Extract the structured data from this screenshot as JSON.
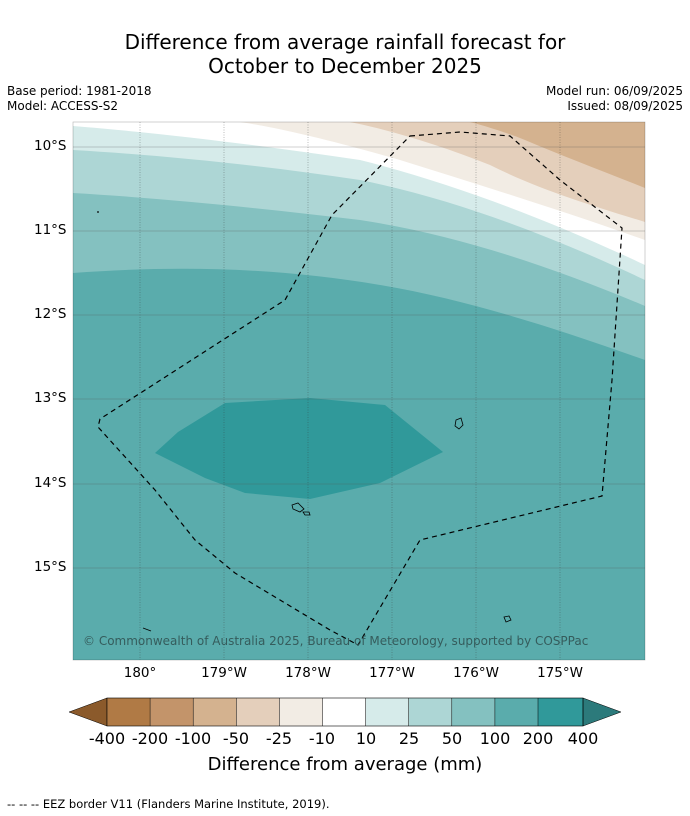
{
  "title_line1": "Difference from average rainfall forecast for",
  "title_line2": "October to December 2025",
  "meta_left": {
    "base_period": "Base period: 1981-2018",
    "model": "Model: ACCESS-S2"
  },
  "meta_right": {
    "model_run": "Model run: 06/09/2025",
    "issued": "Issued: 08/09/2025"
  },
  "map": {
    "lat_labels": [
      "10°S",
      "11°S",
      "12°S",
      "13°S",
      "14°S",
      "15°S"
    ],
    "lon_labels": [
      "180°",
      "179°W",
      "178°W",
      "177°W",
      "176°W",
      "175°W"
    ],
    "copyright": "© Commonwealth of Australia 2025, Bureau of Meteorology, supported by COSPPac"
  },
  "colorbar": {
    "labels": [
      "-400",
      "-200",
      "-100",
      "-50",
      "-25",
      "-10",
      "10",
      "25",
      "50",
      "100",
      "200",
      "400"
    ],
    "colors": [
      "#8b5a2b",
      "#b07a45",
      "#c3946a",
      "#d4b28f",
      "#e4cfbb",
      "#f2ece4",
      "#ffffff",
      "#d6ebea",
      "#add6d5",
      "#84c1c0",
      "#5aacac",
      "#30999a",
      "#2c7a7b"
    ],
    "title": "Difference from average (mm)"
  },
  "footnote": "--  --  -- EEZ border V11 (Flanders Marine Institute, 2019)."
}
